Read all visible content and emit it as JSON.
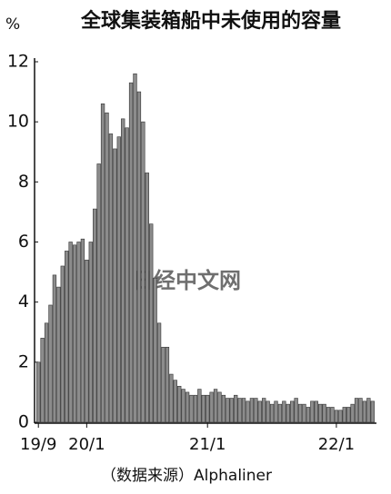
{
  "chart_data": {
    "type": "bar",
    "title": "全球集装箱船中未使用的容量",
    "unit": "%",
    "source": "（数据来源）Alphaliner",
    "watermark": "日经中文网",
    "categories": [
      "19/9",
      null,
      null,
      null,
      null,
      null,
      null,
      null,
      null,
      null,
      null,
      null,
      "20/1",
      null,
      null,
      null,
      null,
      null,
      null,
      null,
      null,
      null,
      null,
      null,
      null,
      null,
      null,
      null,
      null,
      null,
      null,
      null,
      null,
      null,
      null,
      null,
      null,
      null,
      null,
      null,
      null,
      null,
      "21/1",
      null,
      null,
      null,
      null,
      null,
      null,
      null,
      null,
      null,
      null,
      null,
      null,
      null,
      null,
      null,
      null,
      null,
      null,
      null,
      null,
      null,
      null,
      null,
      null,
      null,
      null,
      null,
      null,
      null,
      null,
      null,
      "22/1",
      null,
      null,
      null,
      null,
      null,
      null,
      null,
      null,
      null
    ],
    "values": [
      2.0,
      2.8,
      3.3,
      3.9,
      4.9,
      4.5,
      5.2,
      5.7,
      6.0,
      5.9,
      6.0,
      6.1,
      5.4,
      6.0,
      7.1,
      8.6,
      10.6,
      10.3,
      9.6,
      9.1,
      9.5,
      10.1,
      9.8,
      11.3,
      11.6,
      11.0,
      10.0,
      8.3,
      6.6,
      4.8,
      3.3,
      2.5,
      2.5,
      1.6,
      1.4,
      1.2,
      1.1,
      1.0,
      0.9,
      0.9,
      1.1,
      0.9,
      0.9,
      1.0,
      1.1,
      1.0,
      0.9,
      0.8,
      0.8,
      0.9,
      0.8,
      0.8,
      0.7,
      0.8,
      0.8,
      0.7,
      0.8,
      0.7,
      0.6,
      0.7,
      0.6,
      0.7,
      0.6,
      0.7,
      0.8,
      0.6,
      0.6,
      0.5,
      0.7,
      0.7,
      0.6,
      0.6,
      0.5,
      0.5,
      0.4,
      0.4,
      0.5,
      0.5,
      0.6,
      0.8,
      0.8,
      0.7,
      0.8,
      0.7
    ],
    "color": "#8c8c8c",
    "ylim": [
      0,
      12
    ],
    "yticks": [
      0,
      2,
      4,
      6,
      8,
      10,
      12
    ],
    "grid": false
  }
}
